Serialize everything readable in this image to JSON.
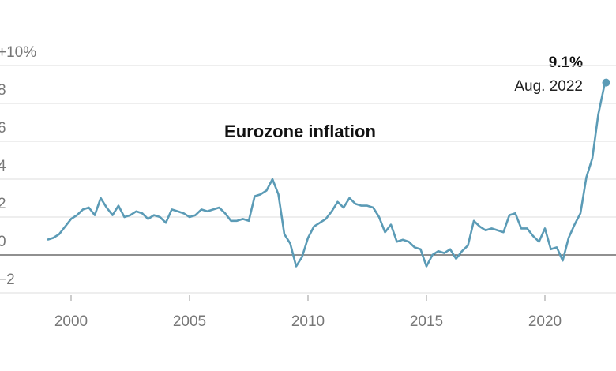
{
  "chart_data": {
    "type": "line",
    "title": "Eurozone inflation",
    "x": [
      1999,
      1999.25,
      1999.5,
      1999.75,
      2000,
      2000.25,
      2000.5,
      2000.75,
      2001,
      2001.25,
      2001.5,
      2001.75,
      2002,
      2002.25,
      2002.5,
      2002.75,
      2003,
      2003.25,
      2003.5,
      2003.75,
      2004,
      2004.25,
      2004.5,
      2004.75,
      2005,
      2005.25,
      2005.5,
      2005.75,
      2006,
      2006.25,
      2006.5,
      2006.75,
      2007,
      2007.25,
      2007.5,
      2007.75,
      2008,
      2008.25,
      2008.5,
      2008.75,
      2009,
      2009.25,
      2009.5,
      2009.75,
      2010,
      2010.25,
      2010.5,
      2010.75,
      2011,
      2011.25,
      2011.5,
      2011.75,
      2012,
      2012.25,
      2012.5,
      2012.75,
      2013,
      2013.25,
      2013.5,
      2013.75,
      2014,
      2014.25,
      2014.5,
      2014.75,
      2015,
      2015.25,
      2015.5,
      2015.75,
      2016,
      2016.25,
      2016.5,
      2016.75,
      2017,
      2017.25,
      2017.5,
      2017.75,
      2018,
      2018.25,
      2018.5,
      2018.75,
      2019,
      2019.25,
      2019.5,
      2019.75,
      2020,
      2020.25,
      2020.5,
      2020.75,
      2021,
      2021.25,
      2021.5,
      2021.75,
      2022,
      2022.25,
      2022.5,
      2022.583
    ],
    "series": [
      {
        "color": "#5b9bb6",
        "values": [
          0.8,
          0.9,
          1.1,
          1.5,
          1.9,
          2.1,
          2.4,
          2.5,
          2.1,
          3.0,
          2.5,
          2.1,
          2.6,
          2.0,
          2.1,
          2.3,
          2.2,
          1.9,
          2.1,
          2.0,
          1.7,
          2.4,
          2.3,
          2.2,
          2.0,
          2.1,
          2.4,
          2.3,
          2.4,
          2.5,
          2.2,
          1.8,
          1.8,
          1.9,
          1.8,
          3.1,
          3.2,
          3.4,
          4.0,
          3.2,
          1.1,
          0.6,
          -0.6,
          -0.1,
          0.9,
          1.5,
          1.7,
          1.9,
          2.3,
          2.8,
          2.5,
          3.0,
          2.7,
          2.6,
          2.6,
          2.5,
          2.0,
          1.2,
          1.6,
          0.7,
          0.8,
          0.7,
          0.4,
          0.3,
          -0.6,
          0.0,
          0.2,
          0.1,
          0.3,
          -0.2,
          0.2,
          0.5,
          1.8,
          1.5,
          1.3,
          1.4,
          1.3,
          1.2,
          2.1,
          2.2,
          1.4,
          1.4,
          1.0,
          0.7,
          1.4,
          0.3,
          0.4,
          -0.3,
          0.9,
          1.6,
          2.2,
          4.1,
          5.1,
          7.4,
          8.9,
          9.1
        ]
      }
    ],
    "annotation": {
      "value_label": "9.1%",
      "date": "Aug. 2022"
    },
    "xlim": [
      1997,
      2023
    ],
    "xticks": [
      2000,
      2005,
      2010,
      2015,
      2020
    ],
    "ylim": [
      -2,
      10
    ],
    "yticks": [
      {
        "value": 10,
        "label": "+10%"
      },
      8,
      6,
      4,
      2,
      0,
      {
        "value": -2,
        "label": "−2"
      }
    ],
    "grid": true
  }
}
